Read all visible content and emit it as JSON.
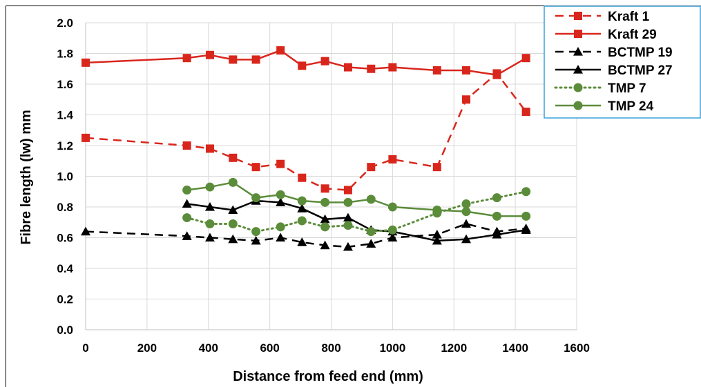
{
  "chart_data": {
    "type": "line",
    "title": "",
    "xlabel": "Distance from feed end (mm)",
    "ylabel": "Fibre length (lw) mm",
    "xlim": [
      0,
      1600
    ],
    "ylim": [
      0,
      2.0
    ],
    "xticks": [
      "0",
      "200",
      "400",
      "600",
      "800",
      "1000",
      "1200",
      "1400",
      "1600"
    ],
    "yticks": [
      "0.0",
      "0.2",
      "0.4",
      "0.6",
      "0.8",
      "1.0",
      "1.2",
      "1.4",
      "1.6",
      "1.8",
      "2.0"
    ],
    "grid": true,
    "legend_position": "top-right",
    "series": [
      {
        "name": "Kraft 1",
        "color": "#d9261c",
        "dash": "dashed",
        "marker": "square",
        "x": [
          0,
          330,
          405,
          480,
          555,
          635,
          705,
          780,
          855,
          930,
          1000,
          1145,
          1240,
          1340,
          1435
        ],
        "y": [
          1.25,
          1.2,
          1.18,
          1.12,
          1.06,
          1.08,
          0.99,
          0.92,
          0.91,
          1.06,
          1.11,
          1.06,
          1.5,
          1.67,
          1.42
        ]
      },
      {
        "name": "Kraft 29",
        "color": "#d9261c",
        "dash": "solid",
        "marker": "square",
        "x": [
          0,
          330,
          405,
          480,
          555,
          635,
          705,
          780,
          855,
          930,
          1000,
          1145,
          1240,
          1340,
          1435
        ],
        "y": [
          1.74,
          1.77,
          1.79,
          1.76,
          1.76,
          1.82,
          1.72,
          1.75,
          1.71,
          1.7,
          1.71,
          1.69,
          1.69,
          1.66,
          1.77
        ]
      },
      {
        "name": "BCTMP 19",
        "color": "#000000",
        "dash": "dashed",
        "marker": "triangle",
        "x": [
          0,
          330,
          405,
          480,
          555,
          635,
          705,
          780,
          855,
          930,
          1000,
          1145,
          1240,
          1340,
          1435
        ],
        "y": [
          0.64,
          0.61,
          0.6,
          0.59,
          0.58,
          0.6,
          0.57,
          0.55,
          0.54,
          0.56,
          0.6,
          0.62,
          0.69,
          0.64,
          0.66
        ]
      },
      {
        "name": "BCTMP 27",
        "color": "#000000",
        "dash": "solid",
        "marker": "triangle",
        "x": [
          330,
          405,
          480,
          555,
          635,
          705,
          780,
          855,
          930,
          1000,
          1145,
          1240,
          1340,
          1435
        ],
        "y": [
          0.82,
          0.8,
          0.78,
          0.84,
          0.83,
          0.79,
          0.72,
          0.73,
          0.65,
          0.64,
          0.58,
          0.59,
          0.62,
          0.65
        ]
      },
      {
        "name": "TMP 7",
        "color": "#5b8c3a",
        "dash": "dotted",
        "marker": "circle",
        "x": [
          330,
          405,
          480,
          555,
          635,
          705,
          780,
          855,
          930,
          1000,
          1145,
          1240,
          1340,
          1435
        ],
        "y": [
          0.73,
          0.69,
          0.69,
          0.64,
          0.67,
          0.71,
          0.67,
          0.68,
          0.64,
          0.65,
          0.76,
          0.82,
          0.86,
          0.9
        ]
      },
      {
        "name": "TMP 24",
        "color": "#5b8c3a",
        "dash": "solid",
        "marker": "circle",
        "x": [
          330,
          405,
          480,
          555,
          635,
          705,
          780,
          855,
          930,
          1000,
          1145,
          1240,
          1340,
          1435
        ],
        "y": [
          0.91,
          0.93,
          0.96,
          0.86,
          0.88,
          0.84,
          0.83,
          0.83,
          0.85,
          0.8,
          0.78,
          0.77,
          0.74,
          0.74
        ]
      }
    ]
  }
}
